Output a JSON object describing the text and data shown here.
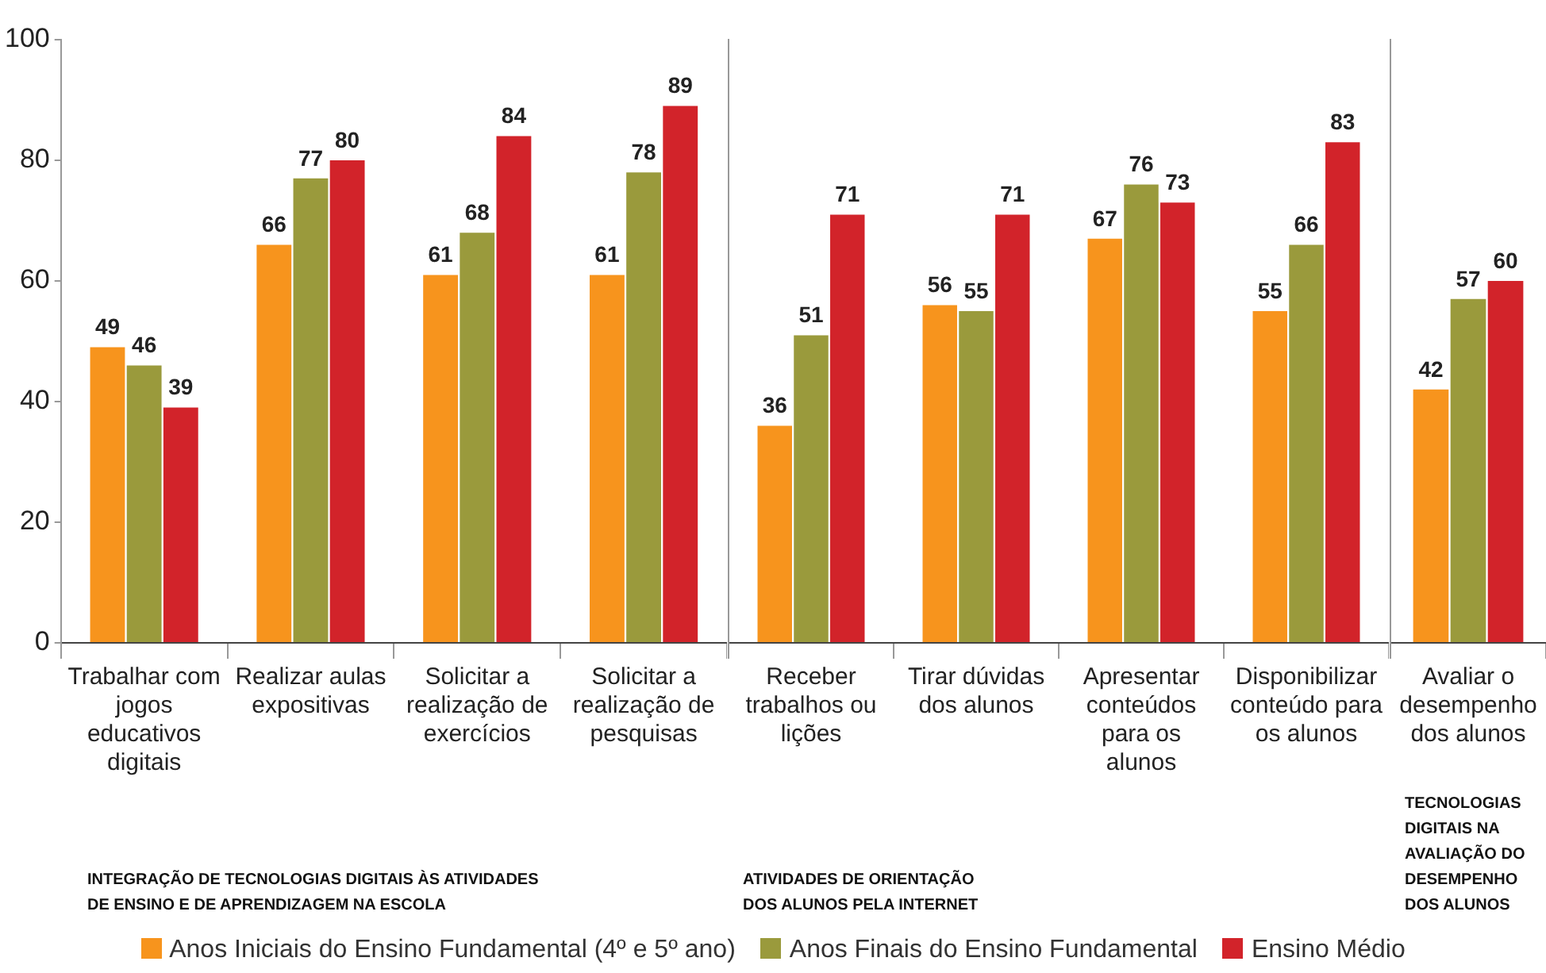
{
  "chart_data": [
    {
      "type": "bar",
      "categories": [
        "Trabalhar com jogos educativos digitais",
        "Realizar aulas expositivas",
        "Solicitar a realização de exercícios",
        "Solicitar a realização de pesquisas"
      ],
      "series": [
        {
          "name": "Anos Iniciais do Ensino Fundamental (4º e 5º ano)",
          "color": "#f7941d",
          "values": [
            49,
            66,
            61,
            61
          ]
        },
        {
          "name": "Anos Finais do Ensino Fundamental",
          "color": "#9a9a3c",
          "values": [
            46,
            77,
            68,
            78
          ]
        },
        {
          "name": "Ensino Médio",
          "color": "#d2232a",
          "values": [
            39,
            80,
            84,
            89
          ]
        }
      ],
      "ylim": [
        0,
        100
      ],
      "yticks": [
        0,
        20,
        40,
        60,
        80,
        100
      ],
      "grid": false,
      "data_labels": true,
      "legend": "bottom",
      "annotations": [
        "INTEGRAÇÃO DE TECNOLOGIAS DIGITAIS ÀS ATIVIDADES DE ENSINO E DE APRENDIZAGEM NA ESCOLA"
      ]
    },
    {
      "type": "bar",
      "categories": [
        "Receber trabalhos ou lições",
        "Tirar dúvidas dos alunos",
        "Apresentar conteúdos para os alunos",
        "Disponibilizar conteúdo para os alunos"
      ],
      "series": [
        {
          "color": "#f7941d",
          "values": [
            36,
            56,
            67,
            55
          ]
        },
        {
          "color": "#9a9a3c",
          "values": [
            51,
            55,
            76,
            66
          ]
        },
        {
          "color": "#d2232a",
          "values": [
            71,
            71,
            73,
            83
          ]
        }
      ],
      "ylim": [
        0,
        100
      ],
      "grid": false,
      "data_labels": true,
      "tick_labels": "x",
      "annotations": [
        "ATIVIDADES DE ORIENTAÇÃO DOS ALUNOS PELA INTERNET"
      ]
    },
    {
      "type": "bar",
      "categories": [
        "Avaliar o desempenho dos alunos"
      ],
      "series": [
        {
          "color": "#f7941d",
          "values": [
            42
          ]
        },
        {
          "color": "#9a9a3c",
          "values": [
            57
          ]
        },
        {
          "color": "#d2232a",
          "values": [
            60
          ]
        }
      ],
      "ylim": [
        0,
        100
      ],
      "grid": false,
      "data_labels": true,
      "tick_labels": "x",
      "annotations": [
        "TECNOLOGIAS DIGITAIS NA AVALIAÇÃO DO DESEMPENHO DOS ALUNOS"
      ]
    }
  ]
}
